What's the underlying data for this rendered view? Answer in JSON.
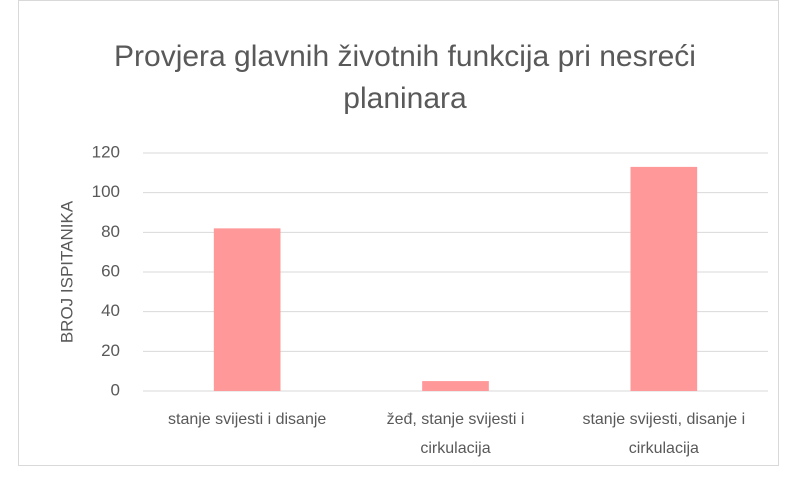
{
  "chart_data": {
    "type": "bar",
    "title": "Provjera glavnih životnih funkcija pri nesreći planinara",
    "y_label": "BROJ ISPITANIKA",
    "categories": [
      "stanje svijesti i disanje",
      "žeđ, stanje svijesti i cirkulacija",
      "stanje svijesti, disanje i cirkulacija"
    ],
    "values": [
      82,
      5,
      113
    ],
    "color": "#ff9999",
    "ylim": [
      0,
      120
    ],
    "yticks": [
      0,
      20,
      40,
      60,
      80,
      100,
      120
    ],
    "grid": true
  }
}
